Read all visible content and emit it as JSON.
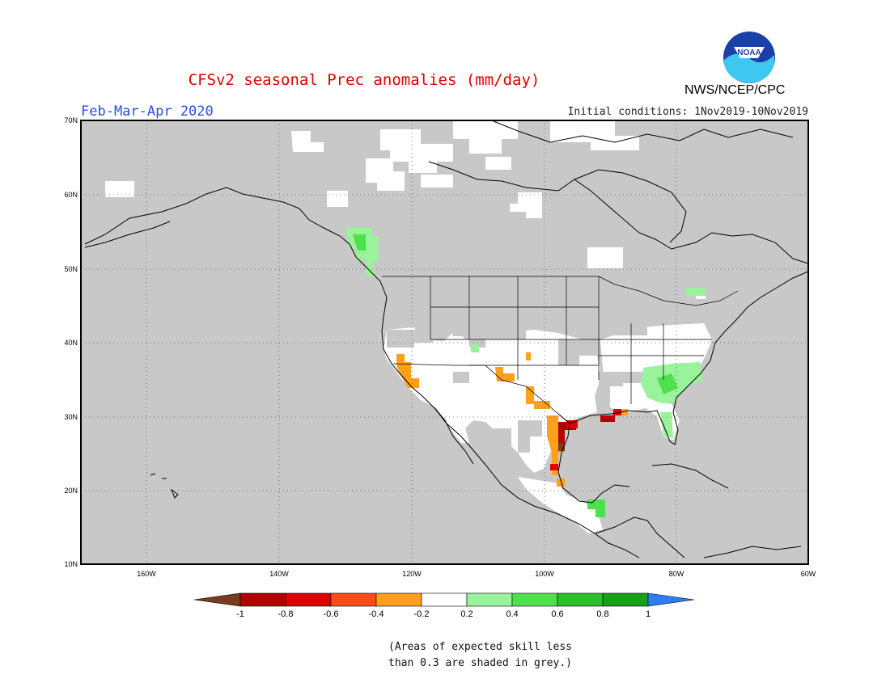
{
  "title": "CFSv2 seasonal Prec anomalies (mm/day)",
  "season": "Feb-Mar-Apr 2020",
  "initial_conditions": "Initial conditions: 1Nov2019-10Nov2019",
  "organization": "NWS/NCEP/CPC",
  "logo": {
    "text": "NOAA",
    "icon": "noaa-logo-icon"
  },
  "map": {
    "lat_labels": [
      "70N",
      "60N",
      "50N",
      "40N",
      "30N",
      "20N",
      "10N"
    ],
    "lon_labels": [
      "160W",
      "140W",
      "120W",
      "100W",
      "80W",
      "60W"
    ],
    "grid": "dotted",
    "mask_color": "#c8c8c8",
    "land_color": "#ffffff"
  },
  "colorbar": {
    "labels": [
      "-1",
      "-0.8",
      "-0.6",
      "-0.4",
      "-0.2",
      "0.2",
      "0.4",
      "0.6",
      "0.8",
      "1"
    ],
    "colors": [
      "#7b3b1e",
      "#b30000",
      "#e00000",
      "#ff4a1a",
      "#ffa01a",
      "#ffffff",
      "#9af29a",
      "#4fe04f",
      "#2cbf2c",
      "#18a018",
      "#2d7df5"
    ]
  },
  "footnote": {
    "line1": "(Areas of expected skill less",
    "line2": "than 0.3 are shaded in grey.)"
  }
}
